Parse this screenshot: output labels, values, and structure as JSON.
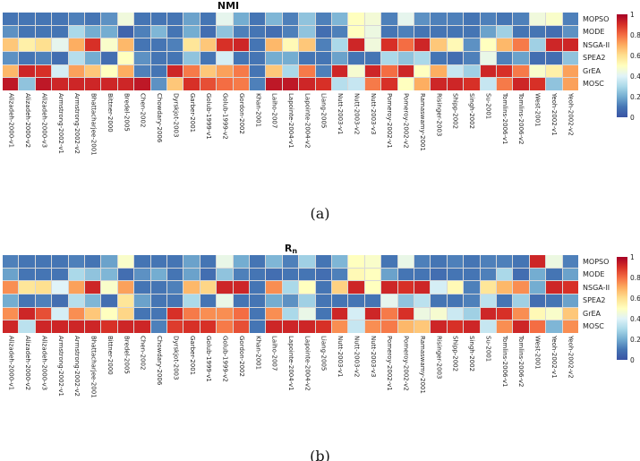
{
  "figure": {
    "background": "#ffffff"
  },
  "colormap": {
    "name": "RdYlBu_r",
    "stops": [
      "#3a53a4",
      "#4575b4",
      "#74add1",
      "#abd9e9",
      "#e0f3f8",
      "#ffffbf",
      "#fee090",
      "#fdae61",
      "#f46d43",
      "#d73027",
      "#a50026"
    ]
  },
  "colorbar": {
    "ticks": [
      "1",
      "0.8",
      "0.6",
      "0.4",
      "0.2",
      "0"
    ]
  },
  "chart_data": [
    {
      "type": "heatmap",
      "title": "NMI",
      "title_base": "NMI",
      "title_sub": "",
      "caption": "(a)",
      "legend_position": "right-colorbar",
      "vmin": 0,
      "vmax": 1,
      "rows": [
        "MOPSO",
        "MODE",
        "NSGA-II",
        "SPEA2",
        "GrEA",
        "MOSC"
      ],
      "columns": [
        "Alizadeh-2000-v1",
        "Alizadeh-2000-v2",
        "Alizadeh-2000-v3",
        "Armstrong-2002-v1",
        "Armstrong-2002-v2",
        "Bhattacharjee-2001",
        "Bittner-2000",
        "Bredel-2005",
        "Chen-2002",
        "Chowdary-2006",
        "Dyrskjot-2003",
        "Garber-2001",
        "Golub-1999-v1",
        "Golub-1999-v2",
        "Gordon-2002",
        "Khan-2001",
        "Laiho-2007",
        "Lapointe-2004-v1",
        "Lapointe-2004-v2",
        "Liang-2005",
        "Nutt-2003-v1",
        "Nutt-2003-v2",
        "Nutt-2003-v3",
        "Pomeroy-2002-v1",
        "Pomeroy-2002-v2",
        "Ramaswamy-2001",
        "Risinger-2003",
        "Shipp-2002",
        "Singh-2002",
        "Su-2001",
        "Tomlins-2006-v1",
        "Tomlins-2006-v2",
        "West-2001",
        "Yeoh-2002-v1",
        "Yeoh-2002-v2"
      ],
      "values": [
        [
          0.1,
          0.1,
          0.1,
          0.1,
          0.12,
          0.1,
          0.15,
          0.45,
          0.1,
          0.1,
          0.1,
          0.18,
          0.1,
          0.42,
          0.2,
          0.1,
          0.22,
          0.12,
          0.25,
          0.12,
          0.22,
          0.5,
          0.46,
          0.12,
          0.42,
          0.15,
          0.12,
          0.12,
          0.1,
          0.12,
          0.1,
          0.12,
          0.45,
          0.48,
          0.12
        ],
        [
          0.15,
          0.1,
          0.1,
          0.1,
          0.3,
          0.2,
          0.2,
          0.05,
          0.12,
          0.22,
          0.1,
          0.2,
          0.08,
          0.25,
          0.12,
          0.1,
          0.08,
          0.12,
          0.25,
          0.08,
          0.12,
          0.5,
          0.44,
          0.1,
          0.12,
          0.1,
          0.1,
          0.1,
          0.1,
          0.18,
          0.28,
          0.1,
          0.1,
          0.08,
          0.15
        ],
        [
          0.65,
          0.55,
          0.6,
          0.42,
          0.7,
          0.9,
          0.48,
          0.68,
          0.1,
          0.1,
          0.12,
          0.58,
          0.65,
          0.9,
          0.92,
          0.1,
          0.68,
          0.52,
          0.65,
          0.12,
          0.3,
          0.92,
          0.45,
          0.9,
          0.8,
          0.92,
          0.65,
          0.52,
          0.15,
          0.5,
          0.68,
          0.78,
          0.28,
          0.92,
          0.92
        ],
        [
          0.15,
          0.1,
          0.12,
          0.08,
          0.32,
          0.2,
          0.08,
          0.5,
          0.15,
          0.1,
          0.1,
          0.25,
          0.1,
          0.38,
          0.1,
          0.1,
          0.2,
          0.2,
          0.1,
          0.1,
          0.18,
          0.1,
          0.1,
          0.3,
          0.25,
          0.3,
          0.1,
          0.08,
          0.12,
          0.43,
          0.12,
          0.18,
          0.08,
          0.08,
          0.25
        ],
        [
          0.68,
          0.92,
          0.9,
          0.38,
          0.72,
          0.65,
          0.5,
          0.7,
          0.12,
          0.1,
          0.92,
          0.78,
          0.65,
          0.72,
          0.78,
          0.1,
          0.65,
          0.3,
          0.78,
          0.12,
          0.92,
          0.47,
          0.92,
          0.8,
          0.92,
          0.5,
          0.7,
          0.35,
          0.28,
          0.92,
          0.9,
          0.78,
          0.48,
          0.55,
          0.72
        ],
        [
          0.95,
          0.25,
          0.95,
          0.92,
          0.92,
          0.92,
          0.92,
          0.92,
          0.95,
          0.15,
          0.65,
          0.9,
          0.85,
          0.8,
          0.78,
          0.12,
          0.95,
          0.95,
          0.92,
          0.9,
          0.32,
          0.35,
          0.78,
          0.9,
          0.5,
          0.7,
          0.92,
          0.92,
          0.9,
          0.35,
          0.78,
          0.92,
          0.9,
          0.25,
          0.72
        ]
      ]
    },
    {
      "type": "heatmap",
      "title": "Rn",
      "title_base": "R",
      "title_sub": "n",
      "caption": "(b)",
      "legend_position": "right-colorbar",
      "vmin": 0,
      "vmax": 1,
      "rows": [
        "MOPSO",
        "MODE",
        "NSGA-II",
        "SPEA2",
        "GrEA",
        "MOSC"
      ],
      "columns": [
        "Alizadeh-2000-v1",
        "Alizadeh-2000-v2",
        "Alizadeh-2000-v3",
        "Armstrong-2002-v1",
        "Armstrong-2002-v2",
        "Bhattacharjee-2001",
        "Bittner-2000",
        "Bredel-2005",
        "Chen-2002",
        "Chowdary-2006",
        "Dyrskjot-2003",
        "Garber-2001",
        "Golub-1999-v1",
        "Golub-1999-v2",
        "Gordon-2002",
        "Khan-2001",
        "Laiho-2007",
        "Lapointe-2004-v1",
        "Lapointe-2004-v2",
        "Liang-2005",
        "Nutt-2003-v1",
        "Nutt-2003-v2",
        "Nutt-2003-v3",
        "Pomeroy-2002-v1",
        "Pomeroy-2002-v2",
        "Ramaswamy-2001",
        "Risinger-2003",
        "Shipp-2002",
        "Singh-2002",
        "Su-2001",
        "Tomlins-2006-v1",
        "Tomlins-2006-v2",
        "West-2001",
        "Yeoh-2002-v1",
        "Yeoh-2002-v2"
      ],
      "values": [
        [
          0.12,
          0.1,
          0.1,
          0.1,
          0.12,
          0.1,
          0.18,
          0.48,
          0.1,
          0.1,
          0.1,
          0.18,
          0.1,
          0.43,
          0.2,
          0.1,
          0.22,
          0.12,
          0.28,
          0.1,
          0.22,
          0.5,
          0.48,
          0.1,
          0.43,
          0.12,
          0.1,
          0.12,
          0.1,
          0.12,
          0.12,
          0.1,
          0.92,
          0.44,
          0.12
        ],
        [
          0.18,
          0.1,
          0.1,
          0.1,
          0.3,
          0.25,
          0.22,
          0.08,
          0.15,
          0.2,
          0.1,
          0.18,
          0.08,
          0.25,
          0.12,
          0.1,
          0.08,
          0.1,
          0.1,
          0.08,
          0.12,
          0.52,
          0.5,
          0.18,
          0.1,
          0.1,
          0.08,
          0.1,
          0.1,
          0.12,
          0.3,
          0.08,
          0.2,
          0.1,
          0.18
        ],
        [
          0.75,
          0.58,
          0.6,
          0.4,
          0.72,
          0.92,
          0.48,
          0.72,
          0.1,
          0.1,
          0.12,
          0.68,
          0.62,
          0.92,
          0.92,
          0.1,
          0.75,
          0.3,
          0.5,
          0.1,
          0.63,
          0.92,
          0.5,
          0.92,
          0.9,
          0.92,
          0.38,
          0.52,
          0.12,
          0.58,
          0.68,
          0.75,
          0.2,
          0.92,
          0.9
        ],
        [
          0.2,
          0.1,
          0.12,
          0.08,
          0.32,
          0.22,
          0.08,
          0.58,
          0.18,
          0.1,
          0.1,
          0.3,
          0.1,
          0.43,
          0.1,
          0.1,
          0.2,
          0.15,
          0.28,
          0.1,
          0.1,
          0.1,
          0.1,
          0.42,
          0.25,
          0.33,
          0.1,
          0.1,
          0.12,
          0.33,
          0.1,
          0.28,
          0.08,
          0.1,
          0.18
        ],
        [
          0.75,
          0.92,
          0.85,
          0.38,
          0.75,
          0.65,
          0.5,
          0.62,
          0.1,
          0.1,
          0.9,
          0.78,
          0.75,
          0.75,
          0.8,
          0.1,
          0.75,
          0.3,
          0.43,
          0.1,
          0.92,
          0.38,
          0.92,
          0.78,
          0.9,
          0.44,
          0.47,
          0.36,
          0.28,
          0.92,
          0.9,
          0.75,
          0.52,
          0.48,
          0.65
        ],
        [
          0.92,
          0.33,
          0.92,
          0.92,
          0.92,
          0.92,
          0.9,
          0.92,
          0.92,
          0.12,
          0.88,
          0.9,
          0.9,
          0.78,
          0.85,
          0.1,
          0.92,
          0.92,
          0.92,
          0.9,
          0.75,
          0.35,
          0.75,
          0.78,
          0.68,
          0.65,
          0.92,
          0.9,
          0.92,
          0.35,
          0.75,
          0.92,
          0.8,
          0.22,
          0.75
        ]
      ]
    }
  ]
}
